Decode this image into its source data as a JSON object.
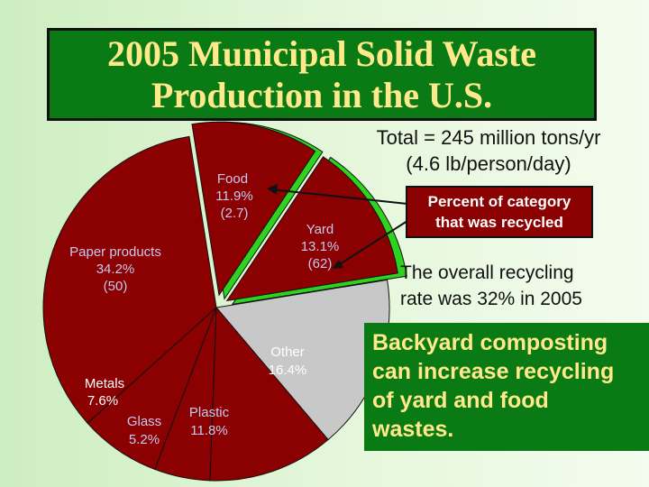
{
  "title": {
    "line1": "2005 Municipal Solid Waste",
    "line2": "Production in the U.S."
  },
  "total": {
    "line1": "Total = 245 million tons/yr",
    "line2": "(4.6 lb/person/day)"
  },
  "recycled_legend": {
    "line1": "Percent of category",
    "line2": "that was recycled"
  },
  "overall_note": {
    "line1": "The overall recycling",
    "line2": "rate was 32% in 2005"
  },
  "backyard_note": {
    "line1": "Backyard composting",
    "line2": "can increase recycling",
    "line3": "of yard and food",
    "line4": "wastes."
  },
  "colors": {
    "pie_main": "#8b0000",
    "pie_other": "#c8c8c8",
    "pie_exploded": "#2ed31e",
    "title_bg": "#0a7a14",
    "title_text": "#ffe98a"
  },
  "chart_data": {
    "type": "pie",
    "slices": [
      {
        "label": "Food",
        "value": 11.9,
        "recycled": 2.7,
        "exploded": true
      },
      {
        "label": "Yard",
        "value": 13.1,
        "recycled": 62,
        "exploded": true
      },
      {
        "label": "Other",
        "value": 16.4,
        "recycled": null,
        "exploded": false
      },
      {
        "label": "Plastic",
        "value": 11.8,
        "recycled": null,
        "exploded": false
      },
      {
        "label": "Glass",
        "value": 5.2,
        "recycled": null,
        "exploded": false
      },
      {
        "label": "Metals",
        "value": 7.6,
        "recycled": null,
        "exploded": false
      },
      {
        "label": "Paper products",
        "value": 34.2,
        "recycled": 50,
        "exploded": false
      }
    ],
    "labels": {
      "food": {
        "name": "Food",
        "pct": "11.9%",
        "rec": "(2.7)"
      },
      "yard": {
        "name": "Yard",
        "pct": "13.1%",
        "rec": "(62)"
      },
      "other": {
        "name": "Other",
        "pct": "16.4%"
      },
      "plastic": {
        "name": "Plastic",
        "pct": "11.8%"
      },
      "glass": {
        "name": "Glass",
        "pct": "5.2%"
      },
      "metals": {
        "name": "Metals",
        "pct": "7.6%"
      },
      "paper": {
        "name": "Paper products",
        "pct": "34.2%",
        "rec": "(50)"
      }
    }
  }
}
